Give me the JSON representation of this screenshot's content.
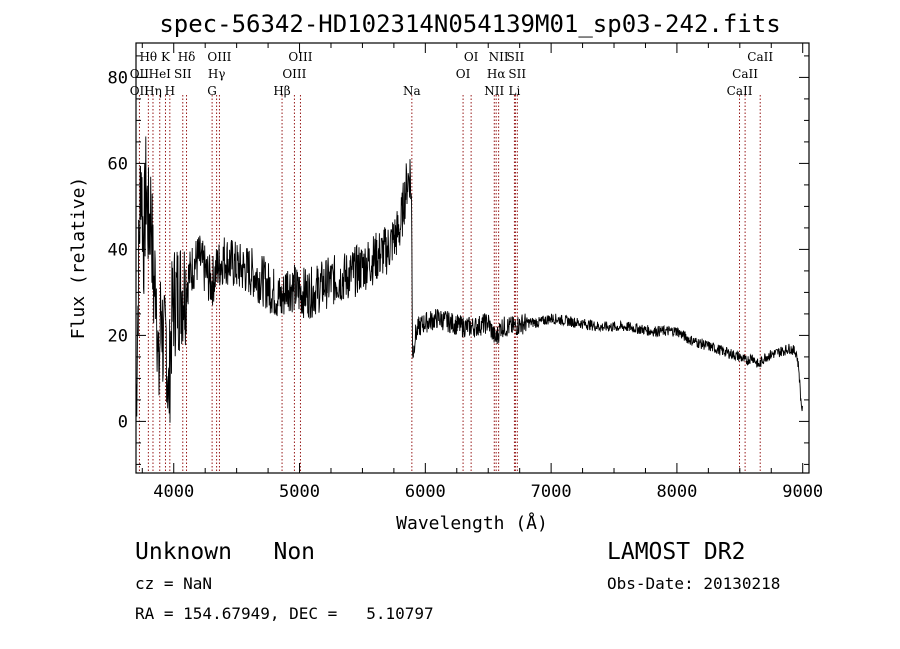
{
  "chart_data": {
    "type": "line",
    "title": "spec-56342-HD102314N054139M01_sp03-242.fits",
    "xlabel": "Wavelength (Å)",
    "ylabel": "Flux (relative)",
    "xlim": [
      3700,
      9050
    ],
    "ylim": [
      -12,
      88
    ],
    "xticks": [
      4000,
      5000,
      6000,
      7000,
      8000,
      9000
    ],
    "yticks": [
      0,
      20,
      40,
      60,
      80
    ],
    "line_color": "#000000",
    "marker_color": "#8b0000",
    "spectrum": {
      "x": [
        3700,
        3720,
        3740,
        3760,
        3780,
        3800,
        3820,
        3840,
        3860,
        3880,
        3900,
        3920,
        3940,
        3960,
        3980,
        4000,
        4050,
        4100,
        4150,
        4200,
        4250,
        4300,
        4350,
        4400,
        4500,
        4600,
        4700,
        4800,
        4860,
        4900,
        5000,
        5100,
        5200,
        5300,
        5400,
        5500,
        5600,
        5700,
        5800,
        5850,
        5880,
        5890,
        5900,
        5920,
        5950,
        6000,
        6100,
        6200,
        6300,
        6400,
        6500,
        6560,
        6600,
        6700,
        6800,
        6900,
        7000,
        7200,
        7400,
        7600,
        7800,
        8000,
        8100,
        8200,
        8300,
        8400,
        8500,
        8550,
        8600,
        8650,
        8700,
        8800,
        8900,
        8950,
        8970,
        8985,
        9000
      ],
      "y": [
        2,
        35,
        60,
        40,
        55,
        45,
        50,
        30,
        35,
        8,
        28,
        15,
        20,
        5,
        22,
        28,
        30,
        32,
        36,
        38,
        35,
        32,
        36,
        38,
        36,
        35,
        33,
        30,
        28,
        32,
        30,
        30,
        32,
        33,
        34,
        36,
        38,
        40,
        45,
        55,
        58,
        50,
        15,
        20,
        22,
        23,
        24,
        23,
        22,
        22,
        23,
        19,
        22,
        22,
        23,
        23,
        24,
        23,
        22,
        22,
        21,
        21,
        19,
        18,
        17,
        16,
        15,
        14,
        15,
        13,
        15,
        16,
        17,
        16,
        12,
        5,
        2
      ]
    },
    "lines": [
      {
        "label": "Hθ",
        "x": 3798,
        "row": 0
      },
      {
        "label": "OII",
        "x": 3727,
        "row": 1
      },
      {
        "label": "OII",
        "x": 3727,
        "row": 2
      },
      {
        "label": "Hη",
        "x": 3835,
        "row": 2
      },
      {
        "label": "HeI",
        "x": 3889,
        "row": 1
      },
      {
        "label": "K",
        "x": 3934,
        "row": 0
      },
      {
        "label": "H",
        "x": 3969,
        "row": 2
      },
      {
        "label": "SII",
        "x": 4072,
        "row": 1
      },
      {
        "label": "Hδ",
        "x": 4102,
        "row": 0
      },
      {
        "label": "OIII",
        "x": 4363,
        "row": 0
      },
      {
        "label": "Hγ",
        "x": 4341,
        "row": 1
      },
      {
        "label": "G",
        "x": 4305,
        "row": 2
      },
      {
        "label": "Hβ",
        "x": 4861,
        "row": 2
      },
      {
        "label": "OIII",
        "x": 5007,
        "row": 0
      },
      {
        "label": "OIII",
        "x": 4959,
        "row": 1
      },
      {
        "label": "Na",
        "x": 5893,
        "row": 2
      },
      {
        "label": "OI",
        "x": 6364,
        "row": 0
      },
      {
        "label": "OI",
        "x": 6300,
        "row": 1
      },
      {
        "label": "NII",
        "x": 6583,
        "row": 0
      },
      {
        "label": "SII",
        "x": 6716,
        "row": 0
      },
      {
        "label": "Hα",
        "x": 6563,
        "row": 1
      },
      {
        "label": "SII",
        "x": 6731,
        "row": 1
      },
      {
        "label": "NII",
        "x": 6548,
        "row": 2
      },
      {
        "label": "Li",
        "x": 6708,
        "row": 2
      },
      {
        "label": "CaII",
        "x": 8662,
        "row": 0
      },
      {
        "label": "CaII",
        "x": 8542,
        "row": 1
      },
      {
        "label": "CaII",
        "x": 8498,
        "row": 2
      }
    ]
  },
  "footer": {
    "object": "Unknown   Non",
    "survey": "LAMOST DR2",
    "cz": "cz = NaN",
    "obs_date": "Obs-Date: 20130218",
    "radec": "RA = 154.67949, DEC =   5.10797"
  }
}
